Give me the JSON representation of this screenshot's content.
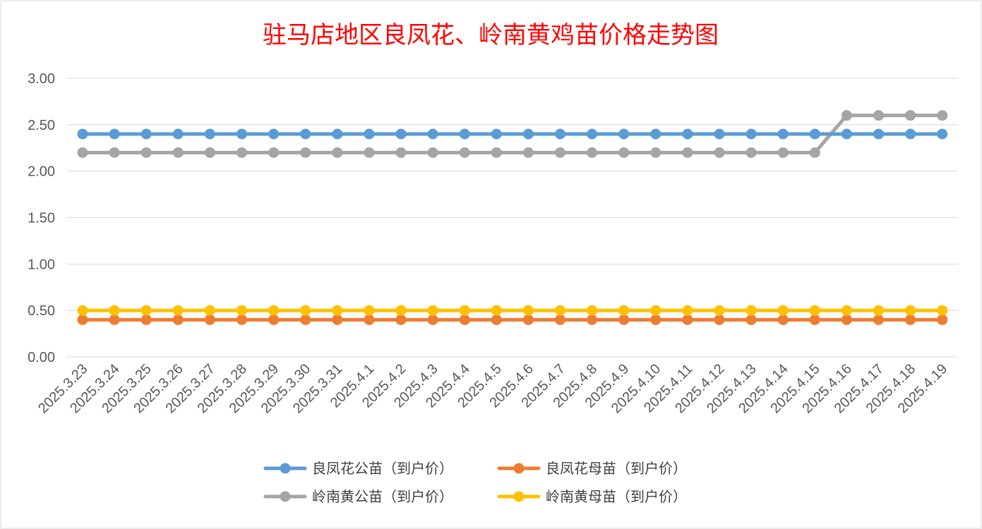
{
  "chart_data": {
    "type": "line",
    "title": "驻马店地区良凤花、岭南黄鸡苗价格走势图",
    "categories": [
      "2025.3.23",
      "2025.3.24",
      "2025.3.25",
      "2025.3.26",
      "2025.3.27",
      "2025.3.28",
      "2025.3.29",
      "2025.3.30",
      "2025.3.31",
      "2025.4.1",
      "2025.4.2",
      "2025.4.3",
      "2025.4.4",
      "2025.4.5",
      "2025.4.6",
      "2025.4.7",
      "2025.4.8",
      "2025.4.9",
      "2025.4.10",
      "2025.4.11",
      "2025.4.12",
      "2025.4.13",
      "2025.4.14",
      "2025.4.15",
      "2025.4.16",
      "2025.4.17",
      "2025.4.18",
      "2025.4.19"
    ],
    "series": [
      {
        "name": "良凤花公苗（到户价）",
        "color": "#5b9bd5",
        "values": [
          2.4,
          2.4,
          2.4,
          2.4,
          2.4,
          2.4,
          2.4,
          2.4,
          2.4,
          2.4,
          2.4,
          2.4,
          2.4,
          2.4,
          2.4,
          2.4,
          2.4,
          2.4,
          2.4,
          2.4,
          2.4,
          2.4,
          2.4,
          2.4,
          2.4,
          2.4,
          2.4,
          2.4
        ]
      },
      {
        "name": "良凤花母苗（到户价）",
        "color": "#ed7d31",
        "values": [
          0.4,
          0.4,
          0.4,
          0.4,
          0.4,
          0.4,
          0.4,
          0.4,
          0.4,
          0.4,
          0.4,
          0.4,
          0.4,
          0.4,
          0.4,
          0.4,
          0.4,
          0.4,
          0.4,
          0.4,
          0.4,
          0.4,
          0.4,
          0.4,
          0.4,
          0.4,
          0.4,
          0.4
        ]
      },
      {
        "name": "岭南黄公苗（到户价）",
        "color": "#a5a5a5",
        "values": [
          2.2,
          2.2,
          2.2,
          2.2,
          2.2,
          2.2,
          2.2,
          2.2,
          2.2,
          2.2,
          2.2,
          2.2,
          2.2,
          2.2,
          2.2,
          2.2,
          2.2,
          2.2,
          2.2,
          2.2,
          2.2,
          2.2,
          2.2,
          2.2,
          2.6,
          2.6,
          2.6,
          2.6
        ]
      },
      {
        "name": "岭南黄母苗（到户价）",
        "color": "#ffc000",
        "values": [
          0.5,
          0.5,
          0.5,
          0.5,
          0.5,
          0.5,
          0.5,
          0.5,
          0.5,
          0.5,
          0.5,
          0.5,
          0.5,
          0.5,
          0.5,
          0.5,
          0.5,
          0.5,
          0.5,
          0.5,
          0.5,
          0.5,
          0.5,
          0.5,
          0.5,
          0.5,
          0.5,
          0.5
        ]
      }
    ],
    "y_ticks": [
      "0.00",
      "0.50",
      "1.00",
      "1.50",
      "2.00",
      "2.50",
      "3.00"
    ],
    "ylim": [
      0,
      3
    ],
    "grid": "horizontal",
    "legend_position": "bottom"
  }
}
